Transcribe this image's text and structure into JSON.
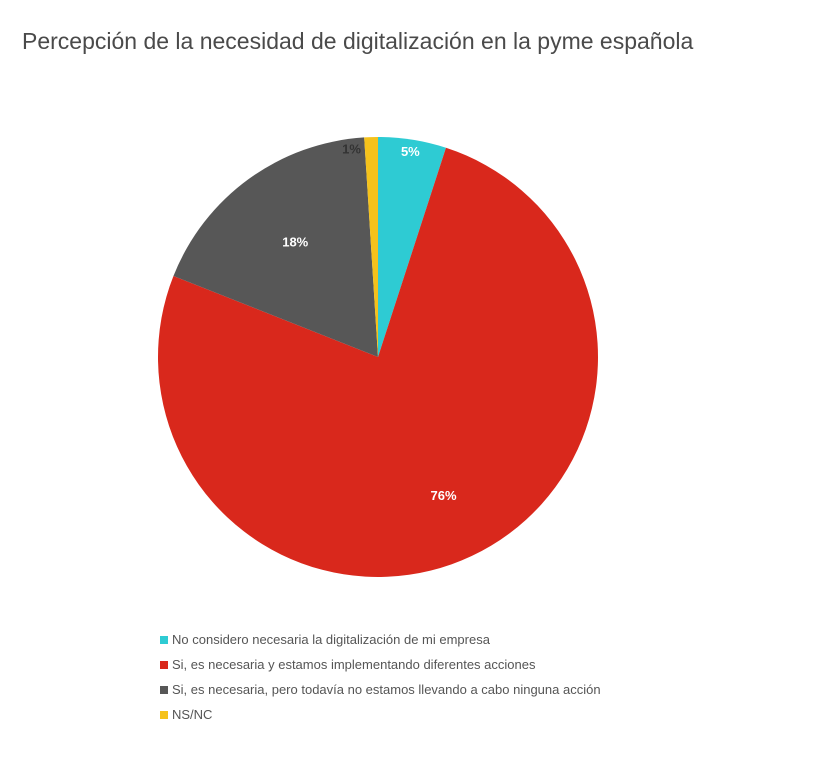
{
  "chart_data": {
    "type": "pie",
    "title": "Percepción de la necesidad de digitalización en la pyme española",
    "slices": [
      {
        "label": "No considero necesaria la digitalización de mi empresa",
        "value": 5,
        "value_label": "5%",
        "color": "#2ecbd3"
      },
      {
        "label": "Si, es necesaria y estamos implementando diferentes acciones",
        "value": 76,
        "value_label": "76%",
        "color": "#d9281c"
      },
      {
        "label": "Si, es necesaria, pero todavía no estamos llevando a cabo ninguna acción",
        "value": 18,
        "value_label": "18%",
        "color": "#575757"
      },
      {
        "label": "NS/NC",
        "value": 1,
        "value_label": "1%",
        "color": "#f5c21b"
      }
    ],
    "legend_position": "bottom"
  },
  "label_text_colors": [
    "#ffffff",
    "#ffffff",
    "#ffffff",
    "#333333"
  ]
}
